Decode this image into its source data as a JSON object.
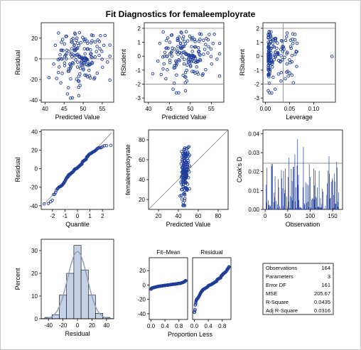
{
  "title": "Fit Diagnostics for femaleemployrate",
  "colors": {
    "marker": "#1f3d99",
    "refline": "#808080",
    "hist_fill": "#c5d1e4",
    "curve": "#8a9bb8",
    "axis": "#000000"
  },
  "chart_data": [
    {
      "id": "resid_vs_pred",
      "type": "scatter",
      "xlabel": "Predicted Value",
      "ylabel": "Residual",
      "xlim": [
        39,
        58
      ],
      "ylim": [
        -42,
        35
      ],
      "xticks": [
        40,
        45,
        50,
        55
      ],
      "yticks": [
        -40,
        -20,
        0,
        20
      ],
      "refline_y": 0,
      "seed": 11
    },
    {
      "id": "rstudent_vs_pred",
      "type": "scatter",
      "xlabel": "Predicted Value",
      "ylabel": "RStudent",
      "xlim": [
        39,
        58
      ],
      "ylim": [
        -3.3,
        2.4
      ],
      "xticks": [
        40,
        45,
        50,
        55
      ],
      "yticks": [
        -3,
        -2,
        -1,
        0,
        1,
        2
      ],
      "refline_y": [
        -2,
        2
      ],
      "seed": 23
    },
    {
      "id": "rstudent_vs_leverage",
      "type": "scatter",
      "xlabel": "Leverage",
      "ylabel": "RStudent",
      "xlim": [
        -0.005,
        0.145
      ],
      "ylim": [
        -3.3,
        2.4
      ],
      "xticks": [
        0.0,
        0.05,
        0.1
      ],
      "xtick_labels": [
        "0.00",
        "0.05",
        "0.10"
      ],
      "yticks": [
        -3,
        -2,
        -1,
        0,
        1,
        2
      ],
      "refline_y": [
        -2,
        2
      ],
      "refline_x": 0.037,
      "seed": 37
    },
    {
      "id": "qq_plot",
      "type": "scatter",
      "xlabel": "Quantile",
      "ylabel": "Residual",
      "xlim": [
        -2.9,
        2.9
      ],
      "ylim": [
        -44,
        42
      ],
      "xticks": [
        -2,
        -1,
        0,
        1,
        2
      ],
      "yticks": [
        -40,
        -20,
        0,
        20,
        40
      ],
      "seed": 41
    },
    {
      "id": "obs_vs_pred",
      "type": "scatter",
      "xlabel": "Predicted Value",
      "ylabel": "femaleemployrate",
      "xlim": [
        10,
        90
      ],
      "ylim": [
        10,
        90
      ],
      "xticks": [
        20,
        40,
        60,
        80
      ],
      "yticks": [
        20,
        40,
        60,
        80
      ],
      "seed": 53
    },
    {
      "id": "cooks_d",
      "type": "bar",
      "xlabel": "Observation",
      "ylabel": "Cook's D",
      "xlim": [
        -5,
        172
      ],
      "ylim": [
        0,
        0.042
      ],
      "xticks": [
        0,
        50,
        100,
        150
      ],
      "yticks": [
        0,
        0.01,
        0.02,
        0.03,
        0.04
      ],
      "ytick_labels": [
        "0.00",
        "0.01",
        "0.02",
        "0.03",
        "0.04"
      ],
      "refline_y": 0.0244,
      "seed": 61
    },
    {
      "id": "residual_histogram",
      "type": "bar",
      "xlabel": "Residual",
      "ylabel": "Percent",
      "xlim": [
        -50,
        50
      ],
      "ylim": [
        0,
        35
      ],
      "xticks": [
        -40,
        -20,
        0,
        20,
        40
      ],
      "yticks": [
        0,
        10,
        20,
        30
      ],
      "bins": [
        {
          "from": -45,
          "to": -35,
          "value": 0.6
        },
        {
          "from": -35,
          "to": -25,
          "value": 1.8
        },
        {
          "from": -25,
          "to": -15,
          "value": 10.4
        },
        {
          "from": -15,
          "to": -5,
          "value": 20.0
        },
        {
          "from": -5,
          "to": 5,
          "value": 32.3
        },
        {
          "from": 5,
          "to": 15,
          "value": 21.5
        },
        {
          "from": 15,
          "to": 25,
          "value": 10.4
        },
        {
          "from": 25,
          "to": 35,
          "value": 2.4
        },
        {
          "from": 35,
          "to": 45,
          "value": 0.6
        }
      ],
      "normal_curve": {
        "mean": 0,
        "sd": 13.5
      }
    },
    {
      "id": "residual_fit_spread",
      "type": "scatter",
      "panel_labels": [
        "Fit–Mean",
        "Residual"
      ],
      "xlabel": "Proportion Less",
      "xlim": [
        -0.05,
        1.05
      ],
      "ylim": [
        -48,
        38
      ],
      "xticks": [
        0,
        0.4,
        0.8
      ],
      "xtick_labels": [
        "0.0",
        "0.4",
        "0.8"
      ],
      "yticks": [
        -40,
        -20,
        0,
        20
      ],
      "seed": 71
    }
  ],
  "stats_table": [
    {
      "label": "Observations",
      "value": "164"
    },
    {
      "label": "Parameters",
      "value": "3"
    },
    {
      "label": "Error DF",
      "value": "161"
    },
    {
      "label": "MSE",
      "value": "205.67"
    },
    {
      "label": "R-Square",
      "value": "0.0435"
    },
    {
      "label": "Adj R-Square",
      "value": "0.0316"
    }
  ]
}
